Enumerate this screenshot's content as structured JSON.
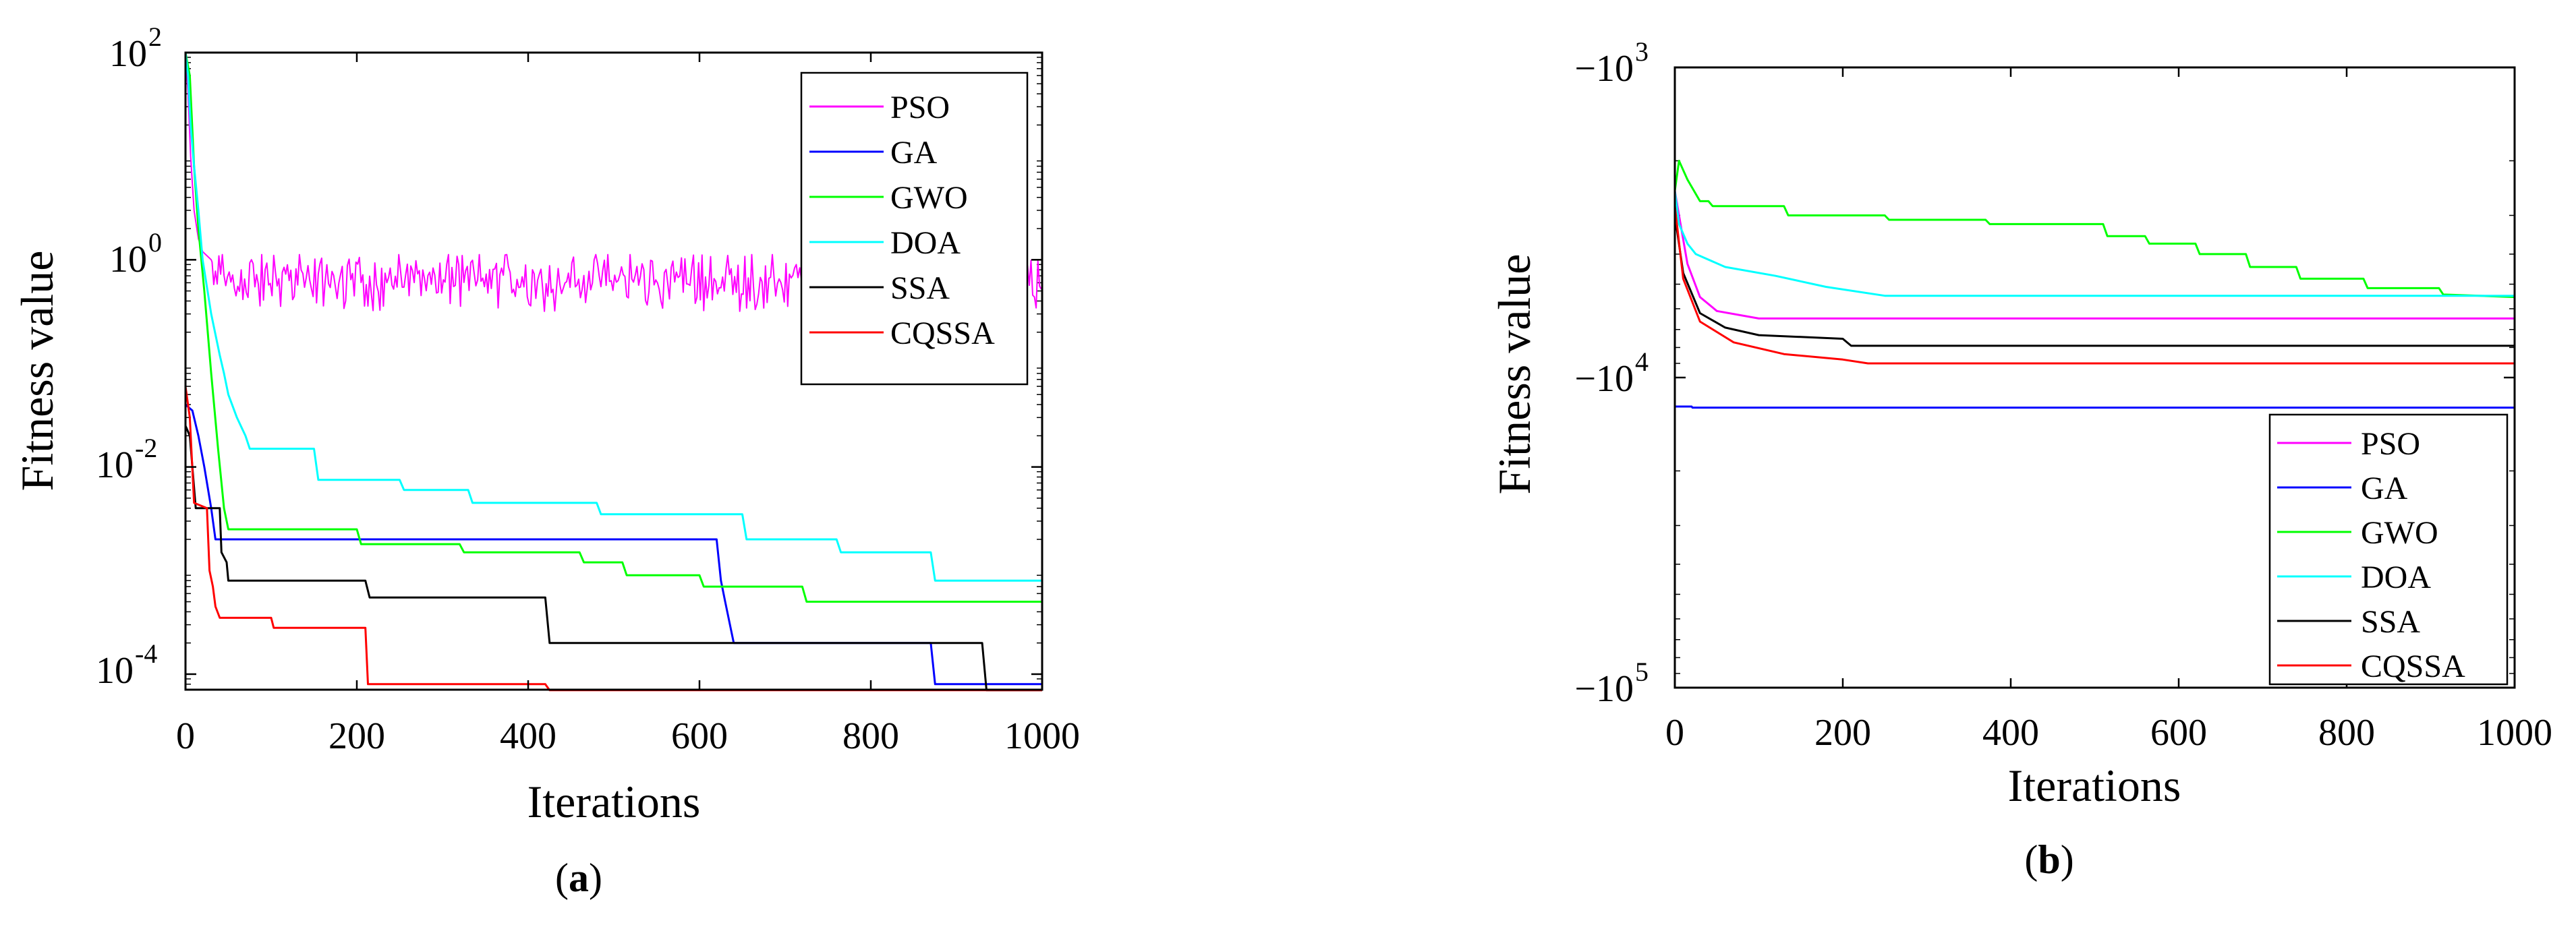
{
  "figure": {
    "caption_a_open": "(",
    "caption_a_letter": "a",
    "caption_a_close": ")",
    "caption_b_open": "(",
    "caption_b_letter": "b",
    "caption_b_close": ")"
  },
  "chart_data": [
    {
      "type": "line",
      "panel": "a",
      "xlabel": "Iterations",
      "ylabel": "Fitness value",
      "xscale": "linear",
      "yscale": "log",
      "xlim": [
        0,
        1000
      ],
      "ylim_exponent": [
        -4.15,
        2
      ],
      "x_ticks": [
        0,
        200,
        400,
        600,
        800,
        1000
      ],
      "x_tick_labels": [
        "0",
        "200",
        "400",
        "600",
        "800",
        "1000"
      ],
      "y_ticks_exponent": [
        2,
        0,
        -2,
        -4
      ],
      "y_tick_base": "10",
      "y_tick_exponent_labels": [
        "2",
        "0",
        "-2",
        "-4"
      ],
      "legend_position": "top-right",
      "series": [
        {
          "name": "PSO",
          "color": "#ff00ff",
          "noisy": true,
          "noise_band_log10": [
            -0.65,
            0.05
          ],
          "points": [
            [
              0,
              100
            ],
            [
              3,
              40
            ],
            [
              6,
              10
            ],
            [
              10,
              3
            ],
            [
              15,
              1.6
            ],
            [
              20,
              1.2
            ],
            [
              30,
              1.0
            ],
            [
              60,
              1.0
            ],
            [
              1000,
              0.55
            ]
          ]
        },
        {
          "name": "GA",
          "color": "#0000ff",
          "points": [
            [
              0,
              0.04
            ],
            [
              8,
              0.035
            ],
            [
              15,
              0.02
            ],
            [
              22,
              0.01
            ],
            [
              30,
              0.004
            ],
            [
              35,
              0.002
            ],
            [
              470,
              0.002
            ],
            [
              620,
              0.002
            ],
            [
              625,
              0.0008
            ],
            [
              630,
              0.0005
            ],
            [
              640,
              0.0002
            ],
            [
              870,
              0.0002
            ],
            [
              875,
              8e-05
            ],
            [
              1000,
              8e-05
            ]
          ]
        },
        {
          "name": "GWO",
          "color": "#00ff00",
          "points": [
            [
              0,
              100
            ],
            [
              5,
              60
            ],
            [
              10,
              8
            ],
            [
              15,
              2
            ],
            [
              22,
              0.5
            ],
            [
              30,
              0.08
            ],
            [
              38,
              0.015
            ],
            [
              45,
              0.004
            ],
            [
              50,
              0.0025
            ],
            [
              200,
              0.0025
            ],
            [
              205,
              0.0018
            ],
            [
              320,
              0.0018
            ],
            [
              325,
              0.0015
            ],
            [
              460,
              0.0015
            ],
            [
              465,
              0.0012
            ],
            [
              510,
              0.0012
            ],
            [
              515,
              0.0009
            ],
            [
              600,
              0.0009
            ],
            [
              605,
              0.0007
            ],
            [
              720,
              0.0007
            ],
            [
              725,
              0.0005
            ],
            [
              1000,
              0.0005
            ]
          ]
        },
        {
          "name": "DOA",
          "color": "#00ffff",
          "points": [
            [
              0,
              100
            ],
            [
              3,
              60
            ],
            [
              6,
              20
            ],
            [
              10,
              8
            ],
            [
              15,
              3
            ],
            [
              20,
              1
            ],
            [
              30,
              0.3
            ],
            [
              40,
              0.12
            ],
            [
              45,
              0.08
            ],
            [
              50,
              0.05
            ],
            [
              60,
              0.03
            ],
            [
              70,
              0.02
            ],
            [
              75,
              0.015
            ],
            [
              150,
              0.015
            ],
            [
              155,
              0.0075
            ],
            [
              250,
              0.0075
            ],
            [
              255,
              0.006
            ],
            [
              330,
              0.006
            ],
            [
              335,
              0.0045
            ],
            [
              480,
              0.0045
            ],
            [
              485,
              0.0035
            ],
            [
              650,
              0.0035
            ],
            [
              655,
              0.002
            ],
            [
              760,
              0.002
            ],
            [
              765,
              0.0015
            ],
            [
              870,
              0.0015
            ],
            [
              875,
              0.0008
            ],
            [
              1000,
              0.0008
            ]
          ]
        },
        {
          "name": "SSA",
          "color": "#000000",
          "points": [
            [
              0,
              0.025
            ],
            [
              5,
              0.02
            ],
            [
              12,
              0.004
            ],
            [
              40,
              0.004
            ],
            [
              42,
              0.0015
            ],
            [
              48,
              0.0012
            ],
            [
              50,
              0.0008
            ],
            [
              210,
              0.0008
            ],
            [
              215,
              0.00055
            ],
            [
              420,
              0.00055
            ],
            [
              425,
              0.0002
            ],
            [
              930,
              0.0002
            ],
            [
              935,
              7e-05
            ],
            [
              1000,
              7e-05
            ]
          ]
        },
        {
          "name": "CQSSA",
          "color": "#ff0000",
          "points": [
            [
              0,
              0.06
            ],
            [
              5,
              0.03
            ],
            [
              10,
              0.0045
            ],
            [
              25,
              0.004
            ],
            [
              28,
              0.001
            ],
            [
              32,
              0.0007
            ],
            [
              35,
              0.00045
            ],
            [
              40,
              0.00035
            ],
            [
              100,
              0.00035
            ],
            [
              103,
              0.00028
            ],
            [
              210,
              0.00028
            ],
            [
              213,
              8e-05
            ],
            [
              420,
              8e-05
            ],
            [
              425,
              7e-05
            ],
            [
              1000,
              7e-05
            ]
          ]
        }
      ]
    },
    {
      "type": "line",
      "panel": "b",
      "xlabel": "Iterations",
      "ylabel": "Fitness value",
      "xscale": "linear",
      "yscale": "negative-log",
      "xlim": [
        0,
        1000
      ],
      "ylim": [
        -100000,
        -1000
      ],
      "x_ticks": [
        0,
        200,
        400,
        600,
        800,
        1000
      ],
      "x_tick_labels": [
        "0",
        "200",
        "400",
        "600",
        "800",
        "1000"
      ],
      "y_ticks": [
        -1000,
        -10000,
        -100000
      ],
      "y_tick_base": "−10",
      "y_tick_exponent_labels": [
        "3",
        "4",
        "5"
      ],
      "legend_position": "bottom-right",
      "series": [
        {
          "name": "PSO",
          "color": "#ff00ff",
          "points": [
            [
              0,
              -2500
            ],
            [
              5,
              -3000
            ],
            [
              15,
              -4300
            ],
            [
              30,
              -5500
            ],
            [
              50,
              -6100
            ],
            [
              100,
              -6450
            ],
            [
              1000,
              -6450
            ]
          ]
        },
        {
          "name": "GA",
          "color": "#0000ff",
          "points": [
            [
              0,
              -12400
            ],
            [
              20,
              -12400
            ],
            [
              21,
              -12500
            ],
            [
              1000,
              -12500
            ]
          ]
        },
        {
          "name": "GWO",
          "color": "#00ff00",
          "points": [
            [
              0,
              -2500
            ],
            [
              5,
              -2000
            ],
            [
              15,
              -2300
            ],
            [
              30,
              -2700
            ],
            [
              40,
              -2700
            ],
            [
              45,
              -2800
            ],
            [
              130,
              -2800
            ],
            [
              135,
              -3000
            ],
            [
              250,
              -3000
            ],
            [
              255,
              -3100
            ],
            [
              370,
              -3100
            ],
            [
              375,
              -3200
            ],
            [
              510,
              -3200
            ],
            [
              515,
              -3500
            ],
            [
              560,
              -3500
            ],
            [
              565,
              -3700
            ],
            [
              620,
              -3700
            ],
            [
              625,
              -4000
            ],
            [
              680,
              -4000
            ],
            [
              685,
              -4400
            ],
            [
              740,
              -4400
            ],
            [
              745,
              -4800
            ],
            [
              820,
              -4800
            ],
            [
              825,
              -5150
            ],
            [
              910,
              -5150
            ],
            [
              915,
              -5400
            ],
            [
              1000,
              -5500
            ]
          ]
        },
        {
          "name": "DOA",
          "color": "#00ffff",
          "points": [
            [
              0,
              -2500
            ],
            [
              5,
              -3200
            ],
            [
              15,
              -3700
            ],
            [
              25,
              -4000
            ],
            [
              60,
              -4400
            ],
            [
              120,
              -4700
            ],
            [
              180,
              -5100
            ],
            [
              250,
              -5450
            ],
            [
              1000,
              -5450
            ]
          ]
        },
        {
          "name": "SSA",
          "color": "#000000",
          "points": [
            [
              0,
              -3000
            ],
            [
              10,
              -4600
            ],
            [
              30,
              -6200
            ],
            [
              60,
              -6900
            ],
            [
              100,
              -7300
            ],
            [
              200,
              -7500
            ],
            [
              210,
              -7900
            ],
            [
              1000,
              -7900
            ]
          ]
        },
        {
          "name": "CQSSA",
          "color": "#ff0000",
          "points": [
            [
              0,
              -2800
            ],
            [
              10,
              -4800
            ],
            [
              30,
              -6600
            ],
            [
              70,
              -7700
            ],
            [
              130,
              -8400
            ],
            [
              200,
              -8750
            ],
            [
              230,
              -9000
            ],
            [
              1000,
              -9000
            ]
          ]
        }
      ]
    }
  ]
}
